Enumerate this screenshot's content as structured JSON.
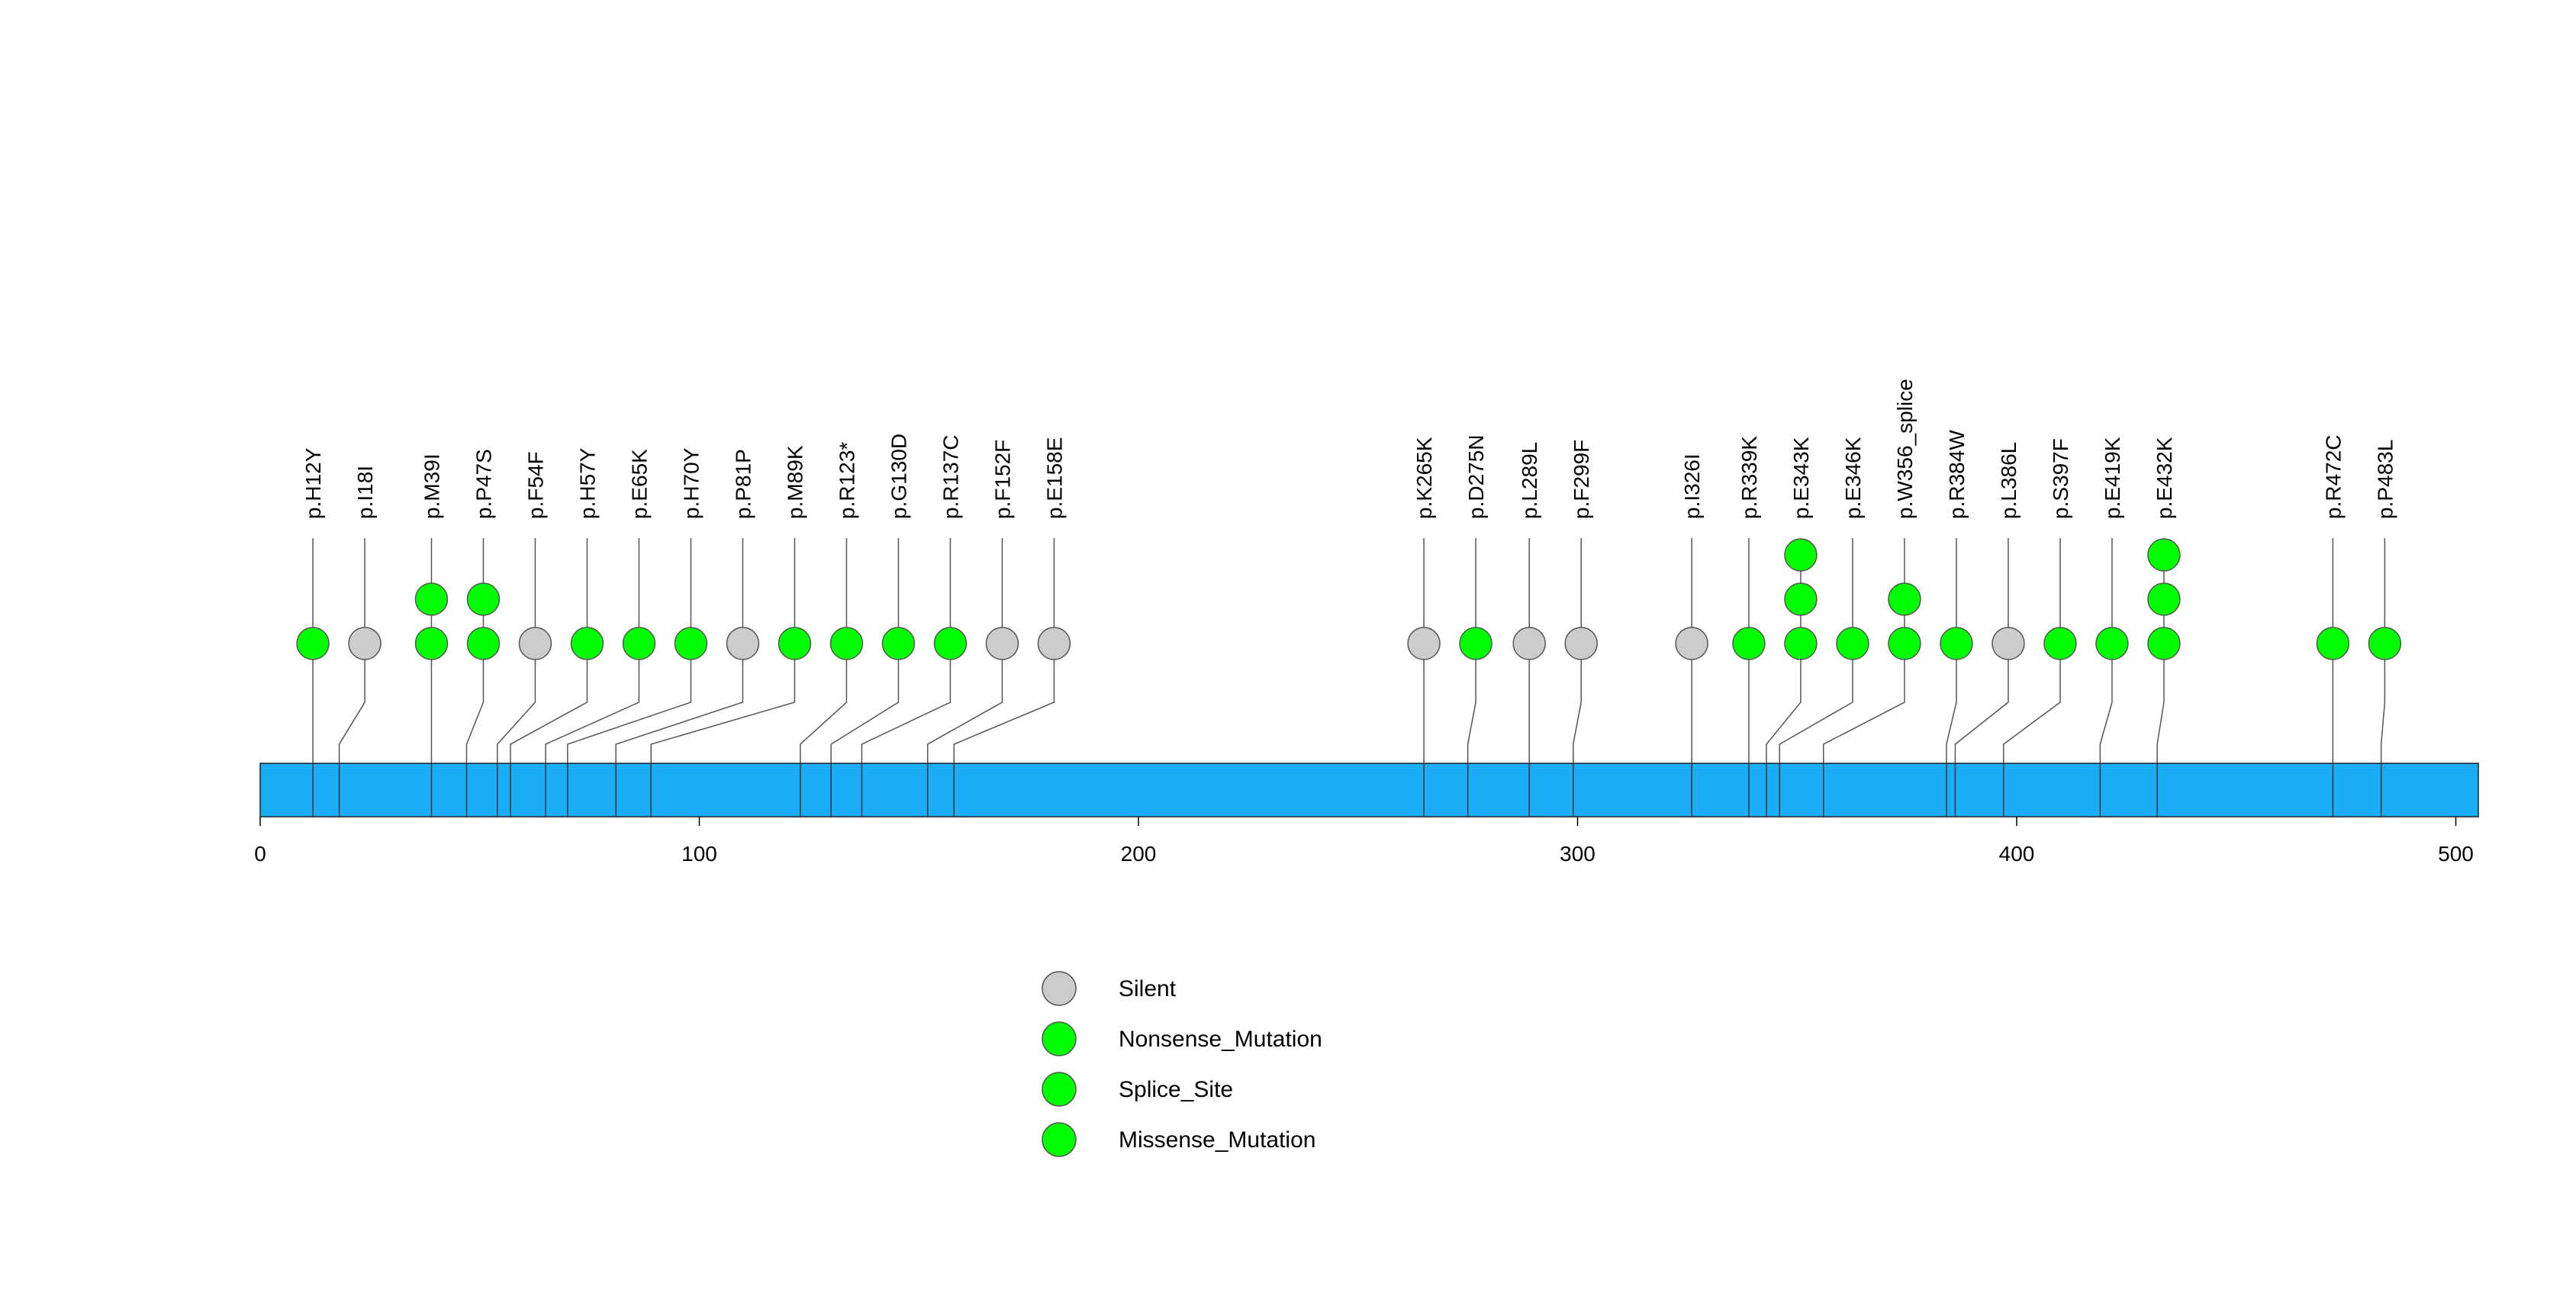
{
  "chart_data": {
    "type": "lollipop",
    "protein_length": 505,
    "xlim": [
      0,
      505
    ],
    "x_ticks": [
      0,
      100,
      200,
      300,
      400,
      500
    ],
    "colors": {
      "domain_bar": "#1aadf5",
      "Silent": "#cccccc",
      "Nonsense_Mutation": "#00ff00",
      "Splice_Site": "#00ff00",
      "Missense_Mutation": "#00ff00"
    },
    "mutations": [
      {
        "label": "p.H12Y",
        "position": 12,
        "count": 1,
        "type": "Missense_Mutation"
      },
      {
        "label": "p.I18I",
        "position": 18,
        "count": 1,
        "type": "Silent"
      },
      {
        "label": "p.M39I",
        "position": 39,
        "count": 2,
        "type": "Missense_Mutation"
      },
      {
        "label": "p.P47S",
        "position": 47,
        "count": 2,
        "type": "Missense_Mutation"
      },
      {
        "label": "p.F54F",
        "position": 54,
        "count": 1,
        "type": "Silent"
      },
      {
        "label": "p.H57Y",
        "position": 57,
        "count": 1,
        "type": "Missense_Mutation"
      },
      {
        "label": "p.E65K",
        "position": 65,
        "count": 1,
        "type": "Missense_Mutation"
      },
      {
        "label": "p.H70Y",
        "position": 70,
        "count": 1,
        "type": "Missense_Mutation"
      },
      {
        "label": "p.P81P",
        "position": 81,
        "count": 1,
        "type": "Silent"
      },
      {
        "label": "p.M89K",
        "position": 89,
        "count": 1,
        "type": "Missense_Mutation"
      },
      {
        "label": "p.R123*",
        "position": 123,
        "count": 1,
        "type": "Nonsense_Mutation"
      },
      {
        "label": "p.G130D",
        "position": 130,
        "count": 1,
        "type": "Missense_Mutation"
      },
      {
        "label": "p.R137C",
        "position": 137,
        "count": 1,
        "type": "Missense_Mutation"
      },
      {
        "label": "p.F152F",
        "position": 152,
        "count": 1,
        "type": "Silent"
      },
      {
        "label": "p.E158E",
        "position": 158,
        "count": 1,
        "type": "Silent"
      },
      {
        "label": "p.K265K",
        "position": 265,
        "count": 1,
        "type": "Silent"
      },
      {
        "label": "p.D275N",
        "position": 275,
        "count": 1,
        "type": "Missense_Mutation"
      },
      {
        "label": "p.L289L",
        "position": 289,
        "count": 1,
        "type": "Silent"
      },
      {
        "label": "p.F299F",
        "position": 299,
        "count": 1,
        "type": "Silent"
      },
      {
        "label": "p.I326I",
        "position": 326,
        "count": 1,
        "type": "Silent"
      },
      {
        "label": "p.R339K",
        "position": 339,
        "count": 1,
        "type": "Missense_Mutation"
      },
      {
        "label": "p.E343K",
        "position": 343,
        "count": 3,
        "type": "Missense_Mutation"
      },
      {
        "label": "p.E346K",
        "position": 346,
        "count": 1,
        "type": "Missense_Mutation"
      },
      {
        "label": "p.W356_splice",
        "position": 356,
        "count": 2,
        "type": "Splice_Site"
      },
      {
        "label": "p.R384W",
        "position": 384,
        "count": 1,
        "type": "Missense_Mutation"
      },
      {
        "label": "p.L386L",
        "position": 386,
        "count": 1,
        "type": "Silent"
      },
      {
        "label": "p.S397F",
        "position": 397,
        "count": 1,
        "type": "Missense_Mutation"
      },
      {
        "label": "p.E419K",
        "position": 419,
        "count": 1,
        "type": "Missense_Mutation"
      },
      {
        "label": "p.E432K",
        "position": 432,
        "count": 3,
        "type": "Missense_Mutation"
      },
      {
        "label": "p.R472C",
        "position": 472,
        "count": 1,
        "type": "Missense_Mutation"
      },
      {
        "label": "p.P483L",
        "position": 483,
        "count": 1,
        "type": "Missense_Mutation"
      }
    ],
    "legend": [
      "Silent",
      "Nonsense_Mutation",
      "Splice_Site",
      "Missense_Mutation"
    ]
  }
}
